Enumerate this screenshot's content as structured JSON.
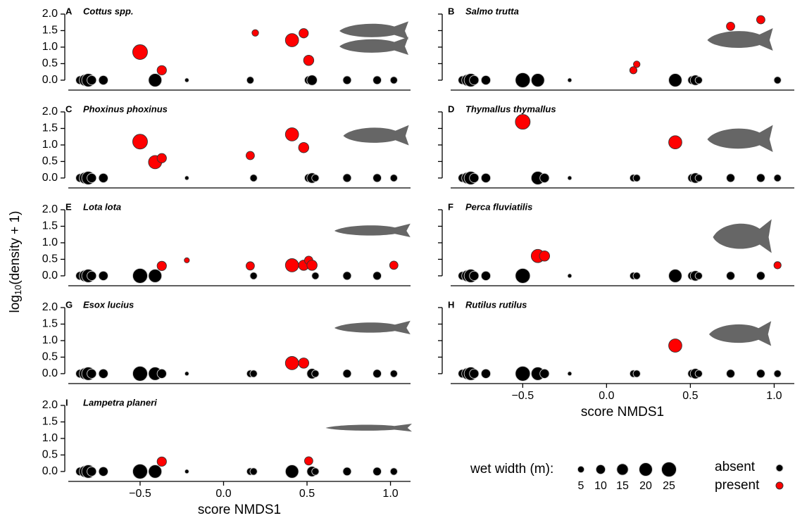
{
  "chart_data": [
    {
      "type": "scatter",
      "label": "A",
      "title": "Cottus spp.",
      "xlim": [
        -0.93,
        1.12
      ],
      "ylim": [
        -0.3,
        2.0
      ],
      "show_ytick_labels": true,
      "yticks": [
        {
          "value": 0,
          "label": "0.0"
        },
        0.5,
        {
          "value": 1,
          "label": "1.0"
        },
        1.5,
        {
          "value": 2,
          "label": "2.0"
        }
      ],
      "absent": {
        "color": "#000000",
        "x": [
          -0.86,
          -0.83,
          -0.81,
          -0.79,
          -0.72,
          -0.41,
          -0.22,
          0.16,
          0.51,
          0.53,
          0.74,
          0.92,
          1.02
        ],
        "values": [
          0,
          0,
          0,
          0,
          0,
          0,
          0,
          0,
          0,
          0,
          0,
          0,
          0
        ],
        "sizes": [
          8,
          15,
          20,
          10,
          10,
          20,
          2,
          6,
          8,
          12,
          8,
          8,
          6
        ]
      },
      "present": {
        "color": "#ff0000",
        "x": [
          -0.5,
          -0.37,
          0.19,
          0.41,
          0.48,
          0.51
        ],
        "values": [
          0.85,
          0.3,
          1.43,
          1.21,
          1.42,
          0.6
        ],
        "sizes": [
          25,
          10,
          5,
          20,
          10,
          12
        ]
      }
    },
    {
      "type": "scatter",
      "label": "B",
      "title": "Salmo trutta",
      "xlim": [
        -0.93,
        1.12
      ],
      "ylim": [
        -0.3,
        2.0
      ],
      "show_ytick_labels": false,
      "yticks": [
        0,
        0.5,
        1,
        1.5,
        2
      ],
      "absent": {
        "color": "#000000",
        "x": [
          -0.86,
          -0.83,
          -0.81,
          -0.79,
          -0.72,
          -0.5,
          -0.41,
          -0.22,
          0.41,
          0.51,
          0.53,
          0.55,
          1.02
        ],
        "values": [
          0,
          0,
          0,
          0,
          0,
          0,
          0,
          0,
          0,
          0,
          0,
          0,
          0
        ],
        "sizes": [
          8,
          15,
          20,
          10,
          10,
          25,
          20,
          2,
          20,
          8,
          12,
          6,
          6
        ]
      },
      "present": {
        "color": "#ff0000",
        "x": [
          0.16,
          0.18,
          0.74,
          0.92
        ],
        "values": [
          0.3,
          0.48,
          1.63,
          1.83
        ],
        "sizes": [
          6,
          5,
          8,
          8
        ]
      }
    },
    {
      "type": "scatter",
      "label": "C",
      "title": "Phoxinus phoxinus",
      "xlim": [
        -0.93,
        1.12
      ],
      "ylim": [
        -0.3,
        2.0
      ],
      "show_ytick_labels": true,
      "yticks": [
        {
          "value": 0,
          "label": "0.0"
        },
        0.5,
        {
          "value": 1,
          "label": "1.0"
        },
        1.5,
        {
          "value": 2,
          "label": "2.0"
        }
      ],
      "absent": {
        "color": "#000000",
        "x": [
          -0.86,
          -0.83,
          -0.81,
          -0.79,
          -0.72,
          -0.22,
          0.18,
          0.51,
          0.53,
          0.55,
          0.74,
          0.92,
          1.02
        ],
        "values": [
          0,
          0,
          0,
          0,
          0,
          0,
          0,
          0,
          0,
          0,
          0,
          0,
          0
        ],
        "sizes": [
          8,
          15,
          20,
          10,
          10,
          2,
          6,
          8,
          12,
          6,
          8,
          8,
          6
        ]
      },
      "present": {
        "color": "#ff0000",
        "x": [
          -0.5,
          -0.41,
          -0.37,
          0.16,
          0.41,
          0.48
        ],
        "values": [
          1.1,
          0.48,
          0.6,
          0.68,
          1.32,
          0.92
        ],
        "sizes": [
          25,
          20,
          10,
          8,
          20,
          12
        ]
      }
    },
    {
      "type": "scatter",
      "label": "D",
      "title": "Thymallus thymallus",
      "xlim": [
        -0.93,
        1.12
      ],
      "ylim": [
        -0.3,
        2.0
      ],
      "show_ytick_labels": false,
      "yticks": [
        0,
        0.5,
        1,
        1.5,
        2
      ],
      "absent": {
        "color": "#000000",
        "x": [
          -0.86,
          -0.83,
          -0.81,
          -0.79,
          -0.72,
          -0.41,
          -0.37,
          -0.22,
          0.16,
          0.18,
          0.51,
          0.53,
          0.55,
          0.74,
          0.92,
          1.02
        ],
        "values": [
          0,
          0,
          0,
          0,
          0,
          0,
          0,
          0,
          0,
          0,
          0,
          0,
          0,
          0,
          0,
          0
        ],
        "sizes": [
          8,
          15,
          20,
          10,
          10,
          20,
          10,
          2,
          6,
          6,
          8,
          12,
          6,
          8,
          8,
          6
        ]
      },
      "present": {
        "color": "#ff0000",
        "x": [
          -0.5,
          0.41
        ],
        "values": [
          1.7,
          1.08
        ],
        "sizes": [
          25,
          20
        ]
      }
    },
    {
      "type": "scatter",
      "label": "E",
      "title": "Lota lota",
      "xlim": [
        -0.93,
        1.12
      ],
      "ylim": [
        -0.3,
        2.0
      ],
      "show_ytick_labels": true,
      "yticks": [
        {
          "value": 0,
          "label": "0.0"
        },
        0.5,
        {
          "value": 1,
          "label": "1.0"
        },
        1.5,
        {
          "value": 2,
          "label": "2.0"
        }
      ],
      "absent": {
        "color": "#000000",
        "x": [
          -0.86,
          -0.83,
          -0.81,
          -0.79,
          -0.72,
          -0.5,
          -0.41,
          0.18,
          0.55,
          0.74,
          0.92
        ],
        "values": [
          0,
          0,
          0,
          0,
          0,
          0,
          0,
          0,
          0,
          0,
          0
        ],
        "sizes": [
          8,
          15,
          20,
          10,
          10,
          25,
          20,
          6,
          6,
          8,
          8
        ]
      },
      "present": {
        "color": "#ff0000",
        "x": [
          -0.37,
          -0.22,
          0.16,
          0.41,
          0.48,
          0.51,
          0.53,
          1.02
        ],
        "values": [
          0.3,
          0.47,
          0.3,
          0.32,
          0.32,
          0.47,
          0.32,
          0.32
        ],
        "sizes": [
          10,
          3,
          8,
          20,
          12,
          8,
          12,
          8
        ]
      }
    },
    {
      "type": "scatter",
      "label": "F",
      "title": "Perca fluviatilis",
      "xlim": [
        -0.93,
        1.12
      ],
      "ylim": [
        -0.3,
        2.0
      ],
      "show_ytick_labels": false,
      "yticks": [
        0,
        0.5,
        1,
        1.5,
        2
      ],
      "absent": {
        "color": "#000000",
        "x": [
          -0.86,
          -0.83,
          -0.81,
          -0.79,
          -0.72,
          -0.5,
          -0.22,
          0.16,
          0.18,
          0.41,
          0.51,
          0.53,
          0.55,
          0.74,
          0.92
        ],
        "values": [
          0,
          0,
          0,
          0,
          0,
          0,
          0,
          0,
          0,
          0,
          0,
          0,
          0,
          0,
          0
        ],
        "sizes": [
          8,
          15,
          20,
          10,
          10,
          25,
          2,
          6,
          6,
          20,
          8,
          12,
          6,
          8,
          8
        ]
      },
      "present": {
        "color": "#ff0000",
        "x": [
          -0.41,
          -0.37,
          1.02
        ],
        "values": [
          0.6,
          0.6,
          0.32
        ],
        "sizes": [
          20,
          12,
          6
        ]
      }
    },
    {
      "type": "scatter",
      "label": "G",
      "title": "Esox lucius",
      "xlim": [
        -0.93,
        1.12
      ],
      "ylim": [
        -0.3,
        2.0
      ],
      "show_ytick_labels": true,
      "yticks": [
        {
          "value": 0,
          "label": "0.0"
        },
        0.5,
        {
          "value": 1,
          "label": "1.0"
        },
        1.5,
        {
          "value": 2,
          "label": "2.0"
        }
      ],
      "absent": {
        "color": "#000000",
        "x": [
          -0.86,
          -0.83,
          -0.81,
          -0.79,
          -0.72,
          -0.5,
          -0.41,
          -0.37,
          -0.22,
          0.16,
          0.18,
          0.53,
          0.55,
          0.74,
          0.92,
          1.02
        ],
        "values": [
          0,
          0,
          0,
          0,
          0,
          0,
          0,
          0,
          0,
          0,
          0,
          0,
          0,
          0,
          0,
          0
        ],
        "sizes": [
          8,
          15,
          20,
          10,
          10,
          25,
          20,
          10,
          2,
          6,
          6,
          12,
          6,
          8,
          8,
          6
        ]
      },
      "present": {
        "color": "#ff0000",
        "x": [
          0.41,
          0.48
        ],
        "values": [
          0.32,
          0.32
        ],
        "sizes": [
          20,
          12
        ]
      }
    },
    {
      "type": "scatter",
      "label": "H",
      "title": "Rutilus rutilus",
      "xlim": [
        -0.93,
        1.12
      ],
      "ylim": [
        -0.3,
        2.0
      ],
      "show_ytick_labels": false,
      "yticks": [
        0,
        0.5,
        1,
        1.5,
        2
      ],
      "xticks": [
        {
          "value": -0.5,
          "label": "−0.5"
        },
        {
          "value": 0,
          "label": "0.0"
        },
        0.5,
        {
          "value": 1,
          "label": "1.0"
        }
      ],
      "xlabel": "score NMDS1",
      "absent": {
        "color": "#000000",
        "x": [
          -0.86,
          -0.83,
          -0.81,
          -0.79,
          -0.72,
          -0.5,
          -0.41,
          -0.37,
          -0.22,
          0.16,
          0.18,
          0.51,
          0.53,
          0.55,
          0.74,
          0.92,
          1.02
        ],
        "values": [
          0,
          0,
          0,
          0,
          0,
          0,
          0,
          0,
          0,
          0,
          0,
          0,
          0,
          0,
          0,
          0,
          0
        ],
        "sizes": [
          8,
          15,
          20,
          10,
          10,
          25,
          20,
          10,
          2,
          6,
          6,
          8,
          12,
          6,
          8,
          8,
          6
        ]
      },
      "present": {
        "color": "#ff0000",
        "x": [
          0.41
        ],
        "values": [
          0.85
        ],
        "sizes": [
          20
        ]
      }
    },
    {
      "type": "scatter",
      "label": "I",
      "title": "Lampetra planeri",
      "xlim": [
        -0.93,
        1.12
      ],
      "ylim": [
        -0.3,
        2.0
      ],
      "show_ytick_labels": true,
      "yticks": [
        {
          "value": 0,
          "label": "0.0"
        },
        0.5,
        {
          "value": 1,
          "label": "1.0"
        },
        1.5,
        {
          "value": 2,
          "label": "2.0"
        }
      ],
      "xticks": [
        {
          "value": -0.5,
          "label": "−0.5"
        },
        {
          "value": 0,
          "label": "0.0"
        },
        0.5,
        {
          "value": 1,
          "label": "1.0"
        }
      ],
      "xlabel": "score NMDS1",
      "absent": {
        "color": "#000000",
        "x": [
          -0.86,
          -0.83,
          -0.81,
          -0.79,
          -0.72,
          -0.5,
          -0.41,
          -0.22,
          0.16,
          0.18,
          0.41,
          0.53,
          0.55,
          0.74,
          0.92,
          1.02
        ],
        "values": [
          0,
          0,
          0,
          0,
          0,
          0,
          0,
          0,
          0,
          0,
          0,
          0,
          0,
          0,
          0,
          0
        ],
        "sizes": [
          8,
          15,
          20,
          10,
          10,
          25,
          20,
          2,
          6,
          6,
          20,
          12,
          6,
          8,
          8,
          6
        ]
      },
      "present": {
        "color": "#ff0000",
        "x": [
          -0.37,
          0.51
        ],
        "values": [
          0.3,
          0.32
        ],
        "sizes": [
          10,
          8
        ]
      }
    }
  ],
  "ylabel": {
    "base": "log",
    "sub": "10",
    "rest": "(density + 1)"
  },
  "legend": {
    "size_title": "wet width (m):",
    "sizes": [
      5,
      10,
      15,
      20,
      25
    ],
    "absent": "absent",
    "present": "present",
    "absent_color": "#000000",
    "present_color": "#ff0000"
  }
}
